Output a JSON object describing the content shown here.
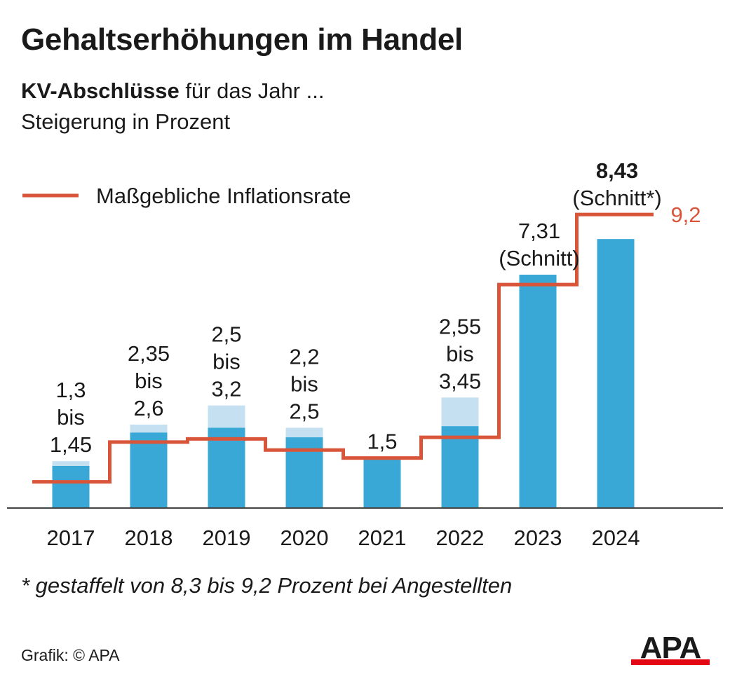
{
  "header": {
    "title": "Gehaltserhöhungen im Handel",
    "subtitle_bold": "KV-Abschlüsse",
    "subtitle_rest": " für das Jahr ...",
    "subtitle_line2": "Steigerung in Prozent"
  },
  "footer": {
    "footnote": "* gestaffelt von 8,3 bis 9,2 Prozent bei Angestellten",
    "credit": "Grafik: © APA",
    "logo_text": "APA"
  },
  "colors": {
    "bar": "#3aa8d6",
    "bar_range": "#c4e0f1",
    "line": "#d9553a",
    "axis": "#444444",
    "logo_bar": "#e30613"
  },
  "chart_data": {
    "type": "bar",
    "categories": [
      "2017",
      "2018",
      "2019",
      "2020",
      "2021",
      "2022",
      "2023",
      "2024"
    ],
    "series": [
      {
        "name": "KV-Abschlüsse",
        "values_low": [
          1.3,
          2.35,
          2.5,
          2.2,
          1.5,
          2.55,
          7.31,
          8.43
        ],
        "values_high": [
          1.45,
          2.6,
          3.2,
          2.5,
          1.5,
          3.45,
          7.31,
          8.43
        ]
      },
      {
        "name": "Maßgebliche Inflationsrate",
        "type": "step-line",
        "values": [
          0.8,
          2.05,
          2.15,
          1.8,
          1.55,
          2.2,
          7.0,
          9.2
        ]
      }
    ],
    "value_labels": [
      [
        "1,3",
        "bis",
        "1,45"
      ],
      [
        "2,35",
        "bis",
        "2,6"
      ],
      [
        "2,5",
        "bis",
        "3,2"
      ],
      [
        "2,2",
        "bis",
        "2,5"
      ],
      [
        "1,5"
      ],
      [
        "2,55",
        "bis",
        "3,45"
      ],
      [
        "7,31",
        "(Schnitt)"
      ],
      [
        "8,43",
        "(Schnitt*)"
      ]
    ],
    "bold_label_index": 7,
    "legend": {
      "label": "Maßgebliche Inflationsrate",
      "position": "top-left"
    },
    "end_label": "9,2",
    "xlabel": "",
    "ylabel": "",
    "ylim": [
      0,
      9.6
    ],
    "grid": false
  }
}
